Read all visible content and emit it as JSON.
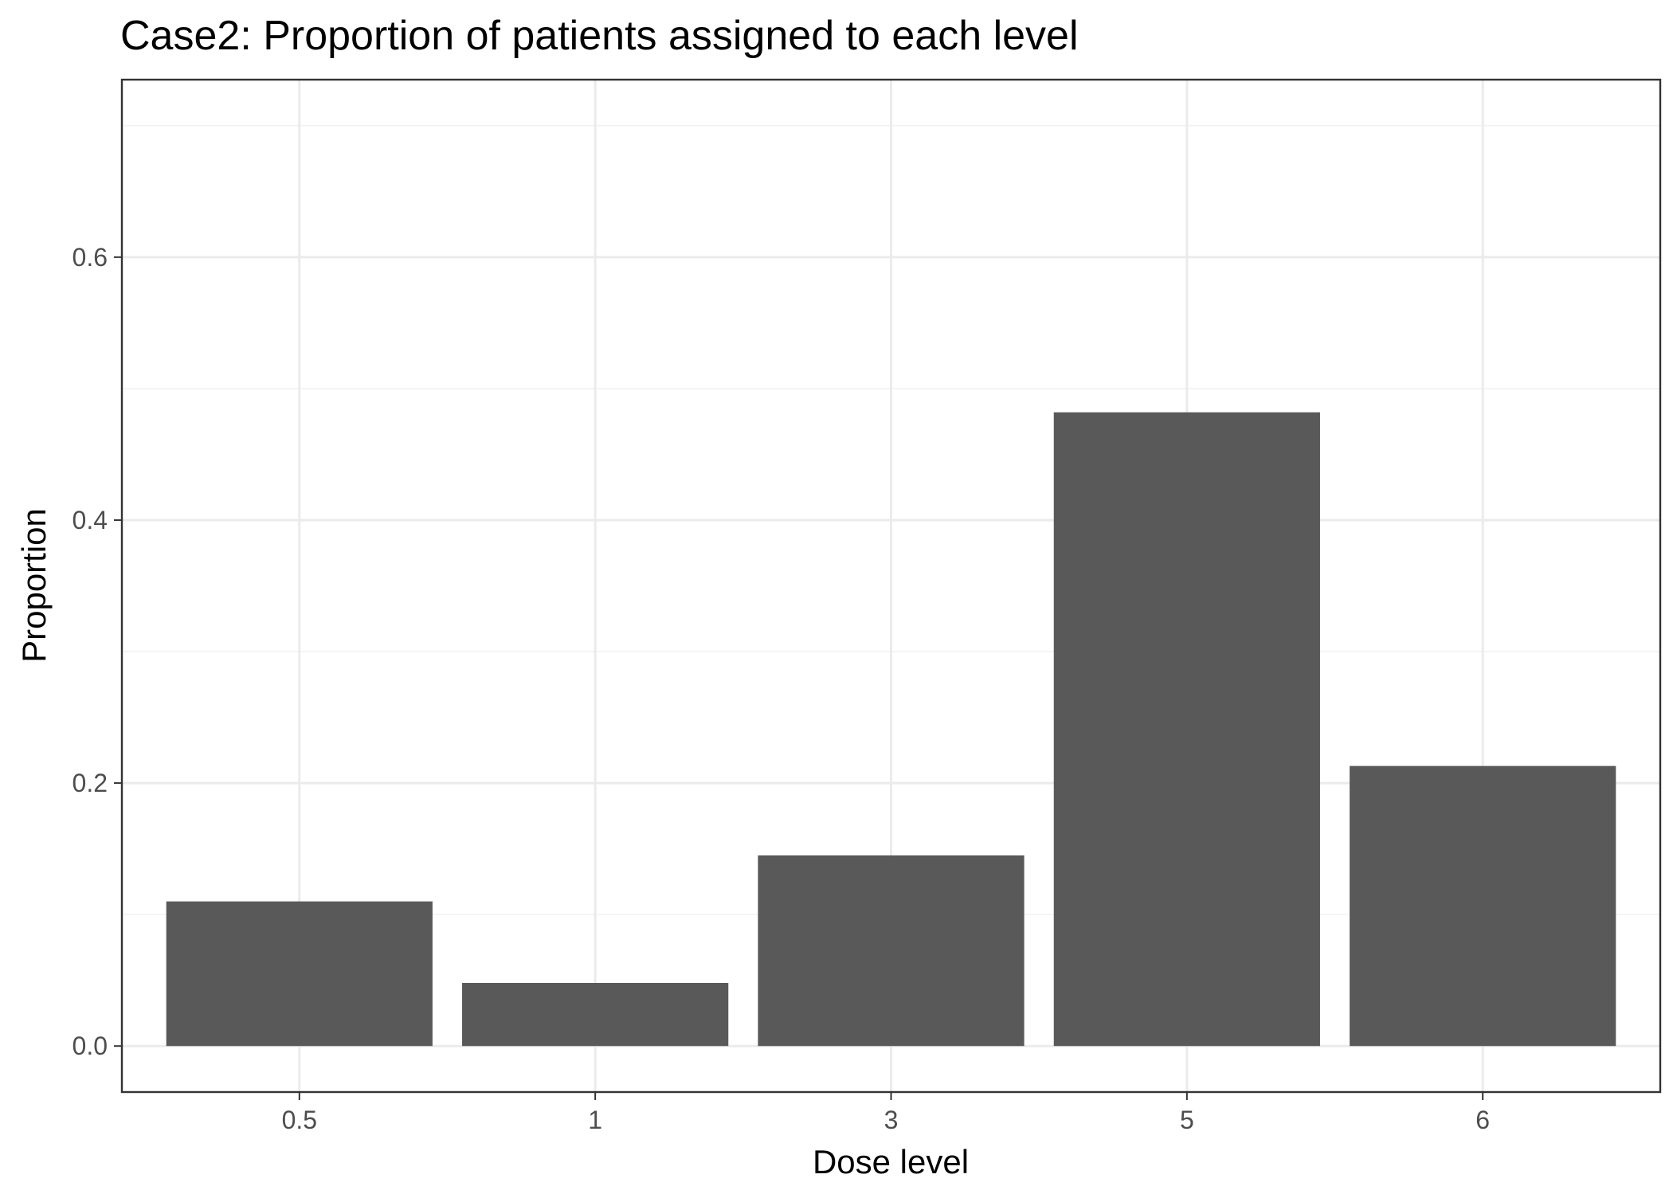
{
  "chart_data": {
    "type": "bar",
    "title": "Case2: Proportion of patients assigned to each level",
    "xlabel": "Dose level",
    "ylabel": "Proportion",
    "categories": [
      "0.5",
      "1",
      "3",
      "5",
      "6"
    ],
    "values": [
      0.11,
      0.048,
      0.145,
      0.482,
      0.213
    ],
    "ylim": [
      -0.035,
      0.735
    ],
    "yticks": [
      0.0,
      0.2,
      0.4,
      0.6
    ],
    "ytick_labels": [
      "0.0",
      "0.2",
      "0.4",
      "0.6"
    ],
    "grid": true,
    "legend": "none",
    "bar_color": "#595959",
    "theme": "bw"
  }
}
